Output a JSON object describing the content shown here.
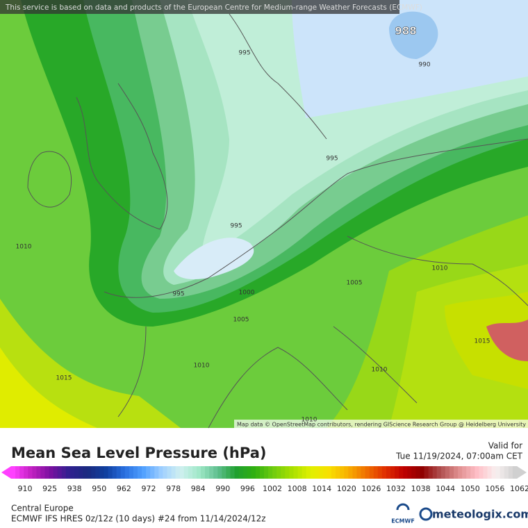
{
  "header": {
    "attribution": "This service is based on data and products of the European Centre for Medium-range Weather Forecasts (ECMWF)"
  },
  "map": {
    "credit": "Map data © OpenStreetMap contributors, rendering GIScience Research Group @ Heidelberg University",
    "contour_labels": [
      988,
      990,
      995,
      995,
      995,
      995,
      1000,
      1005,
      1005,
      1010,
      1010,
      1010,
      1010,
      1015,
      1015,
      1010
    ]
  },
  "legend": {
    "title": "Mean Sea Level Pressure (hPa)",
    "valid_label": "Valid for",
    "valid_time": "Tue 11/19/2024, 07:00am CET",
    "colorbar_ticks": [
      910,
      925,
      938,
      950,
      962,
      972,
      978,
      984,
      990,
      996,
      1002,
      1008,
      1014,
      1020,
      1026,
      1032,
      1038,
      1044,
      1050,
      1056,
      1062
    ],
    "region": "Central Europe",
    "model": "ECMWF IFS HRES 0z/12z (10 days) #24 from  11/14/2024/12z",
    "ecmwf_logo": "ECMWF",
    "site": "meteologix.com"
  }
}
